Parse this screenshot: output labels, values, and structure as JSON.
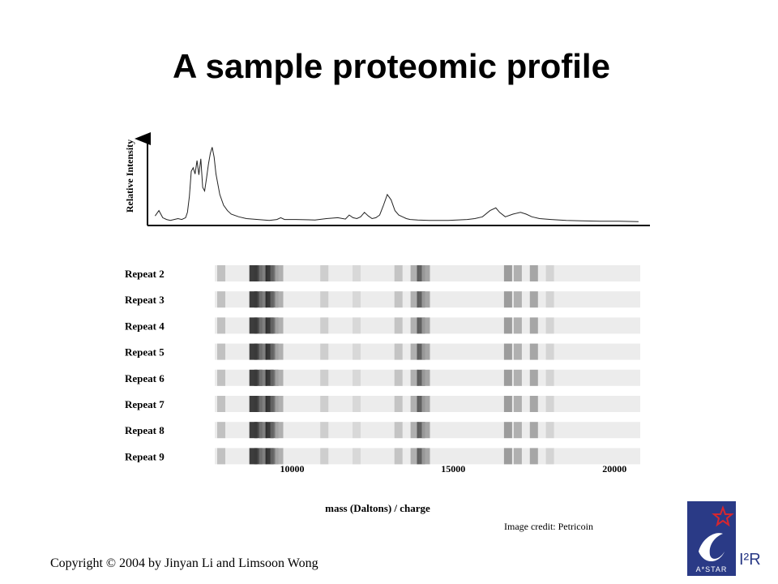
{
  "slide": {
    "title": "A sample proteomic profile",
    "image_credit": "Image credit: Petricoin",
    "copyright": "Copyright © 2004 by Jinyan Li and Limsoon Wong"
  },
  "logo": {
    "icon": "astar-logo-icon",
    "text": "A*STAR",
    "i2r_text": "I²R",
    "colors": {
      "navy": "#2a3a86",
      "red": "#d7262e"
    }
  },
  "chart_data": [
    {
      "type": "line",
      "ylabel": "Relative Intensity",
      "xlim": [
        7600,
        20800
      ],
      "ylim": [
        0,
        1
      ],
      "x": [
        7800,
        7900,
        8000,
        8100,
        8200,
        8300,
        8400,
        8500,
        8600,
        8650,
        8700,
        8750,
        8800,
        8850,
        8900,
        8950,
        9000,
        9050,
        9100,
        9150,
        9200,
        9250,
        9300,
        9350,
        9400,
        9500,
        9600,
        9700,
        9800,
        10000,
        10200,
        10500,
        10800,
        11000,
        11100,
        11200,
        11500,
        12000,
        12300,
        12600,
        12800,
        12900,
        13000,
        13100,
        13200,
        13300,
        13400,
        13500,
        13600,
        13700,
        13800,
        13900,
        14000,
        14100,
        14200,
        14300,
        14400,
        14500,
        14700,
        15000,
        15500,
        16000,
        16200,
        16400,
        16600,
        16750,
        16850,
        17000,
        17200,
        17400,
        17550,
        17700,
        17900,
        18200,
        18600,
        19000,
        19500,
        20000,
        20500
      ],
      "y": [
        0.08,
        0.14,
        0.06,
        0.04,
        0.03,
        0.04,
        0.05,
        0.04,
        0.06,
        0.12,
        0.3,
        0.58,
        0.62,
        0.55,
        0.7,
        0.54,
        0.72,
        0.4,
        0.36,
        0.5,
        0.66,
        0.78,
        0.85,
        0.74,
        0.55,
        0.32,
        0.2,
        0.14,
        0.1,
        0.07,
        0.05,
        0.04,
        0.03,
        0.04,
        0.06,
        0.04,
        0.04,
        0.035,
        0.05,
        0.06,
        0.045,
        0.09,
        0.06,
        0.05,
        0.07,
        0.12,
        0.08,
        0.05,
        0.06,
        0.09,
        0.2,
        0.32,
        0.26,
        0.14,
        0.09,
        0.07,
        0.05,
        0.04,
        0.035,
        0.03,
        0.03,
        0.04,
        0.05,
        0.07,
        0.14,
        0.17,
        0.12,
        0.07,
        0.1,
        0.12,
        0.1,
        0.07,
        0.05,
        0.04,
        0.03,
        0.025,
        0.02,
        0.02,
        0.015
      ]
    },
    {
      "type": "heatmap",
      "xlabel": "mass (Daltons) / charge",
      "xlim": [
        7600,
        20800
      ],
      "xticks": [
        10000,
        15000,
        20000
      ],
      "rows": [
        "Repeat 2",
        "Repeat 3",
        "Repeat 4",
        "Repeat 5",
        "Repeat 6",
        "Repeat 7",
        "Repeat 8",
        "Repeat 9"
      ],
      "bands": [
        {
          "x": 7800,
          "darkness": 0.22
        },
        {
          "x": 8800,
          "darkness": 0.88
        },
        {
          "x": 8950,
          "darkness": 0.82
        },
        {
          "x": 9100,
          "darkness": 0.55
        },
        {
          "x": 9300,
          "darkness": 0.9
        },
        {
          "x": 9450,
          "darkness": 0.6
        },
        {
          "x": 9600,
          "darkness": 0.3
        },
        {
          "x": 11000,
          "darkness": 0.15
        },
        {
          "x": 12000,
          "darkness": 0.1
        },
        {
          "x": 13300,
          "darkness": 0.2
        },
        {
          "x": 13800,
          "darkness": 0.3
        },
        {
          "x": 14000,
          "darkness": 0.7
        },
        {
          "x": 14150,
          "darkness": 0.35
        },
        {
          "x": 16700,
          "darkness": 0.4
        },
        {
          "x": 17000,
          "darkness": 0.3
        },
        {
          "x": 17500,
          "darkness": 0.35
        },
        {
          "x": 18000,
          "darkness": 0.12
        }
      ]
    }
  ]
}
